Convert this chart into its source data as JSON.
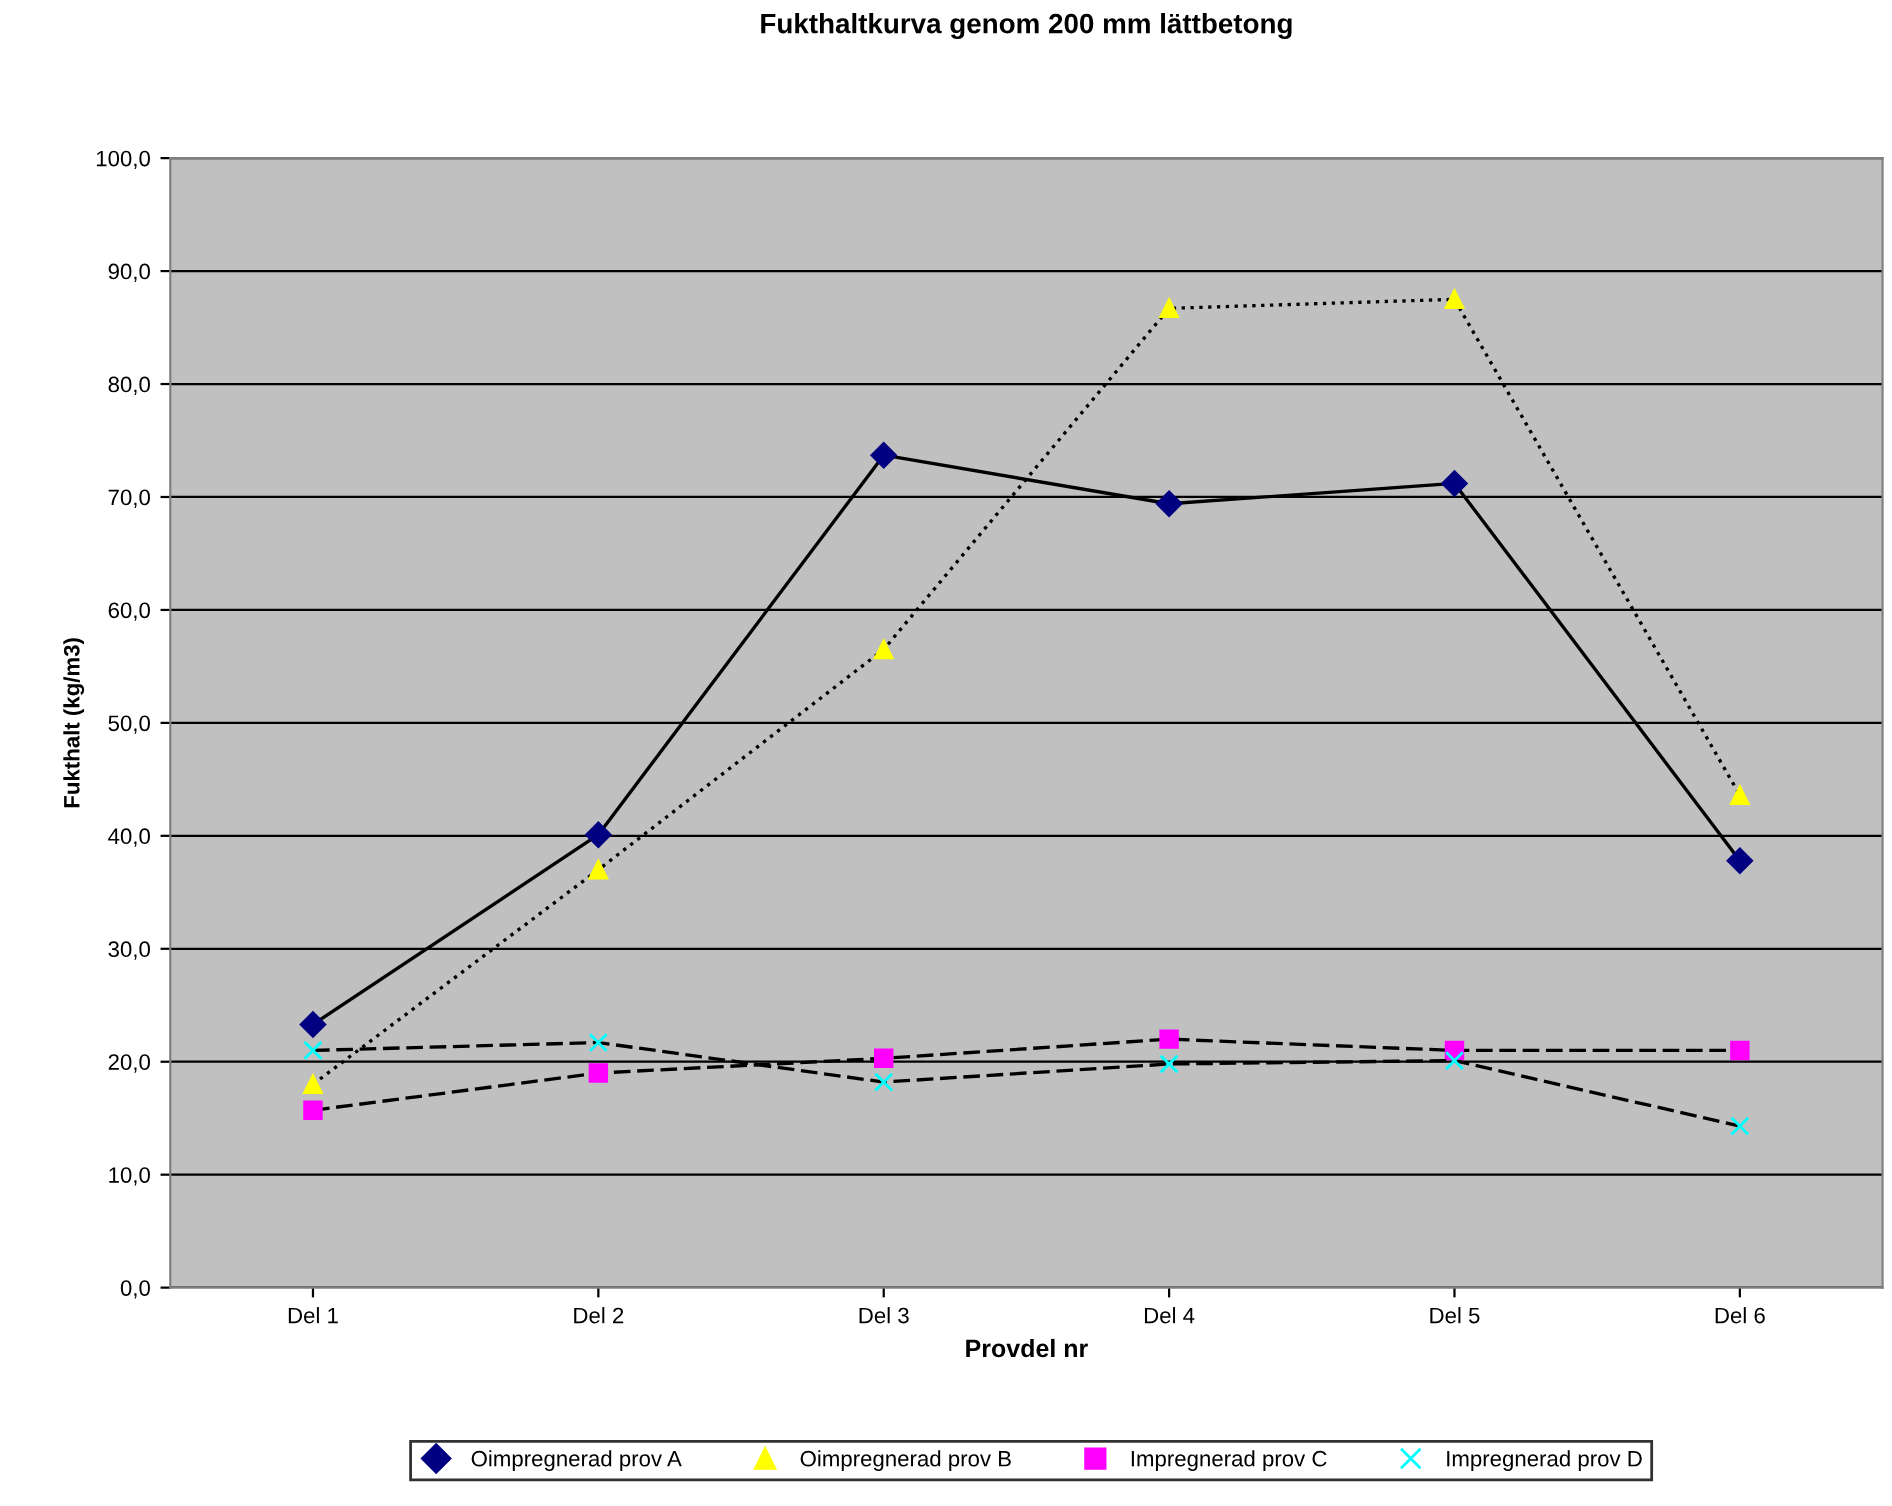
{
  "chart_data": {
    "type": "line",
    "title": "Fukthaltkurva genom 200 mm lättbetong",
    "xlabel": "Provdel nr",
    "ylabel": "Fukthalt (kg/m3)",
    "categories": [
      "Del 1",
      "Del 2",
      "Del 3",
      "Del 4",
      "Del 5",
      "Del 6"
    ],
    "series": [
      {
        "name": "Oimpregnerad prov A",
        "color": "#000080",
        "marker": "diamond",
        "line_style": "solid",
        "values": [
          23.3,
          40.1,
          73.7,
          69.4,
          71.2,
          37.8
        ]
      },
      {
        "name": "Oimpregnerad prov B",
        "color": "#ffff00",
        "marker": "triangle",
        "line_style": "dotted",
        "values": [
          18.0,
          37.0,
          56.5,
          86.7,
          87.5,
          43.6
        ]
      },
      {
        "name": "Impregnerad prov C",
        "color": "#ff00ff",
        "marker": "square",
        "line_style": "dashed",
        "values": [
          15.7,
          19.0,
          20.3,
          22.0,
          21.0,
          21.0
        ]
      },
      {
        "name": "Impregnerad prov D",
        "color": "#00ffff",
        "marker": "cross",
        "line_style": "dashed",
        "values": [
          21.0,
          21.7,
          18.2,
          19.8,
          20.1,
          14.3
        ]
      }
    ],
    "ylim": [
      0,
      100
    ],
    "yticks": [
      {
        "value": 0,
        "label": "0,0"
      },
      {
        "value": 10,
        "label": "10,0"
      },
      {
        "value": 20,
        "label": "20,0"
      },
      {
        "value": 30,
        "label": "30,0"
      },
      {
        "value": 40,
        "label": "40,0"
      },
      {
        "value": 50,
        "label": "50,0"
      },
      {
        "value": 60,
        "label": "60,0"
      },
      {
        "value": 70,
        "label": "70,0"
      },
      {
        "value": 80,
        "label": "80,0"
      },
      {
        "value": 90,
        "label": "90,0"
      },
      {
        "value": 100,
        "label": "100,0"
      }
    ],
    "grid": "y",
    "legend": "bottom"
  }
}
